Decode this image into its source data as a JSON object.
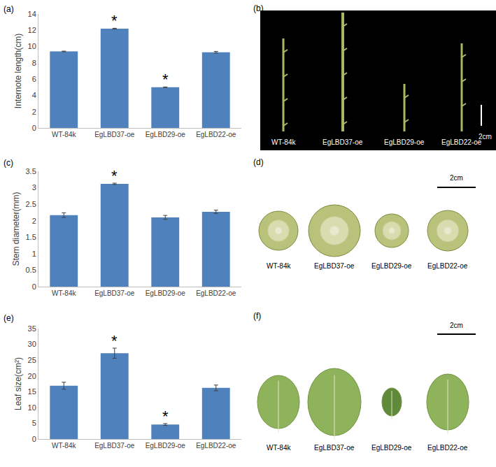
{
  "chart_data": [
    {
      "type": "bar",
      "panel": "(a)",
      "ylabel": "Internote length(cm)",
      "categories": [
        "WT-84k",
        "EgLBD37-oe",
        "EgLBD29-oe",
        "EgLBD22-oe"
      ],
      "values": [
        9.4,
        12.2,
        5.0,
        9.3
      ],
      "errors": [
        0.04,
        0.05,
        0.04,
        0.1
      ],
      "color": "#4f81bd",
      "ylim": [
        0,
        14
      ],
      "yticks": [
        0,
        2,
        4,
        6,
        8,
        10,
        12,
        14
      ],
      "grid": false,
      "annotations": [
        {
          "category": "EgLBD37-oe",
          "text": "*"
        },
        {
          "category": "EgLBD29-oe",
          "text": "*"
        }
      ]
    },
    {
      "type": "bar",
      "panel": "(c)",
      "ylabel": "Stem diameter(mm)",
      "categories": [
        "WT-84k",
        "EgLBD37-oe",
        "EgLBD29-oe",
        "EgLBD22-oe"
      ],
      "values": [
        2.17,
        3.12,
        2.1,
        2.27
      ],
      "errors": [
        0.07,
        0.02,
        0.06,
        0.05
      ],
      "color": "#4f81bd",
      "ylim": [
        0,
        3.5
      ],
      "yticks": [
        0,
        0.5,
        1,
        1.5,
        2,
        2.5,
        3,
        3.5
      ],
      "grid": false,
      "annotations": [
        {
          "category": "EgLBD37-oe",
          "text": "*"
        }
      ]
    },
    {
      "type": "bar",
      "panel": "(e)",
      "ylabel": "Leaf size(cm²)",
      "categories": [
        "WT-84k",
        "EgLBD37-oe",
        "EgLBD29-oe",
        "EgLBD22-oe"
      ],
      "values": [
        16.9,
        27.2,
        4.6,
        16.2
      ],
      "errors": [
        1.1,
        1.6,
        0.3,
        0.9
      ],
      "color": "#4f81bd",
      "ylim": [
        0,
        35
      ],
      "yticks": [
        0,
        5,
        10,
        15,
        20,
        25,
        30,
        35
      ],
      "grid": false,
      "annotations": [
        {
          "category": "EgLBD37-oe",
          "text": "*"
        },
        {
          "category": "EgLBD29-oe",
          "text": "*"
        }
      ]
    }
  ],
  "photos": [
    {
      "panel": "(b)",
      "labels": [
        "WT-84k",
        "EgLBD37-oe",
        "EgLBD29-oe",
        "EgLBD22-oe"
      ],
      "scale_bar": "2cm"
    },
    {
      "panel": "(d)",
      "labels": [
        "WT-84k",
        "EgLBD37-oe",
        "EgLBD29-oe",
        "EgLBD22-oe"
      ],
      "scale_bar": "2cm"
    },
    {
      "panel": "(f)",
      "labels": [
        "WT-84k",
        "EgLBD37-oe",
        "EgLBD29-oe",
        "EgLBD22-oe"
      ],
      "scale_bar": "2cm"
    }
  ]
}
